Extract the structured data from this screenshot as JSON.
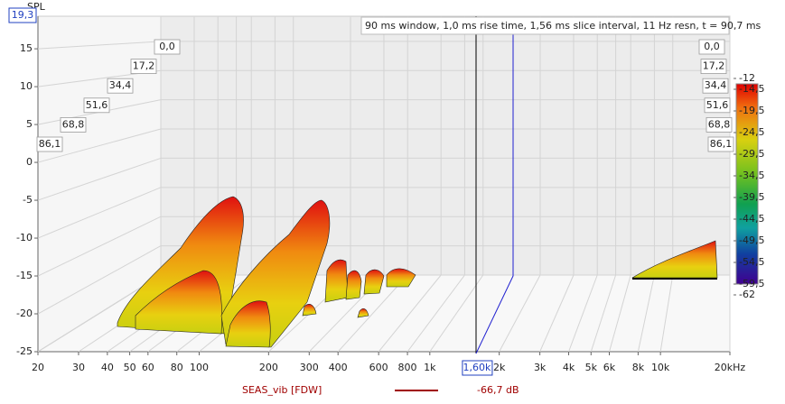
{
  "chart_data": {
    "type": "waterfall",
    "y_label": "SPL",
    "y_cursor": "19,3",
    "title": "90 ms window, 1,0 ms rise time, 1,56 ms slice interval, 11 Hz resn, t = 90,7 ms",
    "xlim": [
      20,
      20000
    ],
    "x_log": true,
    "xticks": [
      20,
      30,
      40,
      50,
      60,
      80,
      100,
      200,
      300,
      400,
      600,
      800,
      {
        "value": 1000,
        "label": "1k"
      },
      {
        "value": 2000,
        "label": "2k"
      },
      {
        "value": 3000,
        "label": "3k"
      },
      {
        "value": 4000,
        "label": "4k"
      },
      {
        "value": 5000,
        "label": "5k"
      },
      {
        "value": 6000,
        "label": "6k"
      },
      {
        "value": 8000,
        "label": "8k"
      },
      {
        "value": 10000,
        "label": "10k"
      },
      {
        "value": 20000,
        "label": "20kHz"
      }
    ],
    "x_cursor": {
      "value": 1600,
      "label": "1,60k"
    },
    "ylim": [
      -25,
      19.3
    ],
    "yticks": [
      15,
      10,
      5,
      0,
      -5,
      -10,
      -15,
      -20,
      -25
    ],
    "time_labels": [
      "0,0",
      "17,2",
      "34,4",
      "51,6",
      "68,8",
      "86,1"
    ],
    "colorbar": {
      "range": [
        -62,
        -12
      ],
      "ticks": [
        -12,
        {
          "value": -14.5,
          "label": "-14,5"
        },
        {
          "value": -19.5,
          "label": "-19,5"
        },
        {
          "value": -24.5,
          "label": "-24,5"
        },
        {
          "value": -29.5,
          "label": "-29,5"
        },
        {
          "value": -34.5,
          "label": "-34,5"
        },
        {
          "value": -39.5,
          "label": "-39,5"
        },
        {
          "value": -44.5,
          "label": "-44,5"
        },
        {
          "value": -49.5,
          "label": "-49,5"
        },
        {
          "value": -54.5,
          "label": "-54,5"
        },
        {
          "value": -59.5,
          "label": "-59,5"
        },
        -62
      ]
    },
    "legend": {
      "name": "SEAS_vib [FDW]",
      "color": "#a00000",
      "value": "-66,7 dB"
    }
  }
}
